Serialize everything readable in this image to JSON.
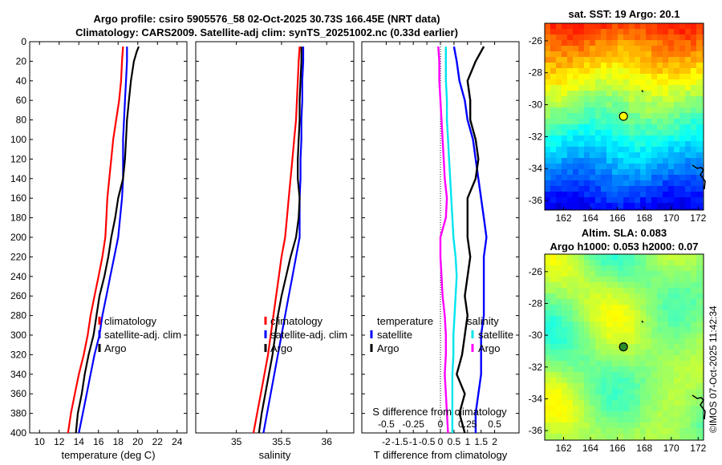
{
  "title_line1": "Argo profile: csiro 5905576_58 02-Oct-2025 30.73S 166.45E (NRT data)",
  "title_line2": "Climatology: CARS2009. Satellite-adj clim: synTS_20251002.nc (0.33d earlier)",
  "watermark": "©IMOS 07-Oct-2025 11:42:34",
  "colors": {
    "clim": "#ff0000",
    "sat": "#0000ff",
    "argo": "#000000",
    "sal_sat": "#00e5ee",
    "sal_argo": "#ff00ff"
  },
  "chart_data": [
    {
      "id": "temp",
      "type": "line",
      "xlabel": "temperature (deg C)",
      "ylabel": "",
      "xlim": [
        9,
        25
      ],
      "ylim": [
        400,
        0
      ],
      "xticks": [
        10,
        12,
        14,
        16,
        18,
        20,
        22,
        24
      ],
      "yticks": [
        0,
        20,
        40,
        60,
        80,
        100,
        120,
        140,
        160,
        180,
        200,
        220,
        240,
        260,
        280,
        300,
        320,
        340,
        360,
        380,
        400
      ],
      "legend": {
        "placement": "lower-right",
        "labels": [
          "climatology",
          "satellite-adj. clim",
          "Argo"
        ]
      },
      "series": [
        {
          "name": "climatology",
          "color": "#ff0000",
          "depth": [
            5,
            20,
            40,
            60,
            80,
            100,
            120,
            140,
            160,
            180,
            200,
            220,
            240,
            260,
            280,
            300,
            320,
            340,
            360,
            380,
            400
          ],
          "values": [
            18.5,
            18.4,
            18.3,
            18.1,
            17.8,
            17.5,
            17.3,
            17.1,
            16.9,
            16.8,
            16.7,
            16.4,
            16.0,
            15.6,
            15.2,
            14.9,
            14.5,
            14.0,
            13.6,
            13.2,
            12.9
          ]
        },
        {
          "name": "satellite-adj. clim",
          "color": "#0000ff",
          "depth": [
            5,
            20,
            40,
            60,
            80,
            100,
            120,
            140,
            160,
            180,
            200,
            220,
            240,
            260,
            280,
            300,
            320,
            340,
            360,
            380,
            400
          ],
          "values": [
            18.9,
            18.9,
            18.8,
            18.7,
            18.6,
            18.5,
            18.5,
            18.5,
            18.4,
            18.2,
            18.0,
            17.6,
            17.2,
            16.8,
            16.4,
            16.1,
            15.6,
            15.2,
            14.8,
            14.4,
            14.0
          ]
        },
        {
          "name": "Argo",
          "color": "#000000",
          "depth": [
            5,
            10,
            20,
            40,
            60,
            80,
            100,
            120,
            140,
            160,
            180,
            200,
            220,
            240,
            260,
            280,
            300,
            320,
            340,
            360,
            380,
            400
          ],
          "values": [
            20.1,
            19.9,
            19.6,
            19.3,
            19.1,
            18.9,
            18.8,
            18.7,
            18.5,
            18.0,
            17.7,
            17.3,
            17.0,
            16.6,
            16.1,
            15.8,
            15.5,
            15.0,
            14.6,
            14.3,
            13.9,
            13.7
          ]
        }
      ]
    },
    {
      "id": "sal",
      "type": "line",
      "xlabel": "salinity",
      "ylabel": "",
      "xlim": [
        34.55,
        36.3
      ],
      "ylim": [
        400,
        0
      ],
      "xticks": [
        35,
        35.5,
        36
      ],
      "legend": {
        "placement": "lower-right",
        "labels": [
          "climatology",
          "satellite-adj. clim",
          "Argo"
        ]
      },
      "series": [
        {
          "name": "climatology",
          "color": "#ff0000",
          "depth": [
            5,
            20,
            40,
            60,
            80,
            100,
            120,
            140,
            160,
            180,
            200,
            220,
            240,
            260,
            280,
            300,
            320,
            340,
            360,
            380,
            400
          ],
          "values": [
            35.7,
            35.69,
            35.68,
            35.67,
            35.66,
            35.64,
            35.62,
            35.6,
            35.58,
            35.56,
            35.54,
            35.5,
            35.47,
            35.44,
            35.41,
            35.38,
            35.35,
            35.31,
            35.27,
            35.23,
            35.19
          ]
        },
        {
          "name": "satellite-adj. clim",
          "color": "#0000ff",
          "depth": [
            5,
            20,
            40,
            60,
            80,
            100,
            120,
            140,
            160,
            180,
            200,
            220,
            240,
            260,
            280,
            300,
            320,
            340,
            360,
            380,
            400
          ],
          "values": [
            35.74,
            35.74,
            35.73,
            35.73,
            35.72,
            35.72,
            35.71,
            35.71,
            35.7,
            35.7,
            35.7,
            35.66,
            35.62,
            35.58,
            35.54,
            35.5,
            35.46,
            35.42,
            35.38,
            35.34,
            35.3
          ]
        },
        {
          "name": "Argo",
          "color": "#000000",
          "depth": [
            5,
            20,
            40,
            60,
            80,
            100,
            120,
            140,
            160,
            180,
            200,
            220,
            240,
            260,
            280,
            300,
            320,
            340,
            360,
            380,
            400
          ],
          "values": [
            35.72,
            35.72,
            35.71,
            35.7,
            35.7,
            35.69,
            35.68,
            35.68,
            35.7,
            35.69,
            35.66,
            35.6,
            35.55,
            35.5,
            35.46,
            35.43,
            35.4,
            35.36,
            35.32,
            35.28,
            35.25
          ]
        }
      ]
    },
    {
      "id": "diff",
      "type": "line",
      "xlabel": "T difference from climatology",
      "xlim": [
        -2.9,
        2.9
      ],
      "ylim": [
        400,
        0
      ],
      "xticks": [
        -2,
        -1.5,
        -1,
        -0.5,
        0,
        0.5,
        1,
        1.5,
        2
      ],
      "top_axis_label": "S difference from climatology",
      "top_ticks": [
        "-0.5",
        "-0.25",
        "0",
        "0.25",
        "0.5"
      ],
      "top_tick_values": [
        -0.5,
        -0.25,
        0,
        0.25,
        0.5
      ],
      "legend_left": {
        "heading": "temperature",
        "labels": [
          "satellite",
          "Argo"
        ]
      },
      "legend_right": {
        "heading": "salinity",
        "labels": [
          "satellite",
          "Argo"
        ]
      },
      "series": [
        {
          "name": "T satellite",
          "color": "#0000ff",
          "depth": [
            5,
            20,
            40,
            60,
            80,
            100,
            120,
            140,
            160,
            180,
            200,
            220,
            240,
            260,
            280,
            300,
            320,
            340,
            360,
            380,
            400
          ],
          "values": [
            0.5,
            0.6,
            0.7,
            0.9,
            1.0,
            1.2,
            1.3,
            1.4,
            1.5,
            1.6,
            1.7,
            1.6,
            1.6,
            1.6,
            1.6,
            1.5,
            1.5,
            1.5,
            1.4,
            1.3,
            1.3
          ]
        },
        {
          "name": "T Argo",
          "color": "#000000",
          "depth": [
            5,
            10,
            20,
            40,
            60,
            80,
            100,
            120,
            140,
            160,
            180,
            200,
            220,
            240,
            260,
            280,
            300,
            320,
            340,
            360,
            380,
            400
          ],
          "values": [
            1.6,
            1.5,
            1.3,
            1.0,
            1.1,
            1.1,
            1.3,
            1.4,
            1.3,
            1.0,
            1.0,
            1.0,
            1.1,
            1.0,
            0.9,
            1.0,
            0.9,
            0.8,
            0.6,
            0.9,
            0.7,
            0.9
          ]
        },
        {
          "name": "S satellite",
          "color": "#00e5ee",
          "depth": [
            5,
            20,
            40,
            60,
            80,
            100,
            120,
            140,
            160,
            180,
            200,
            220,
            240,
            260,
            280,
            300,
            320,
            340,
            360,
            380,
            400
          ],
          "values": [
            0.05,
            0.05,
            0.05,
            0.06,
            0.06,
            0.07,
            0.08,
            0.09,
            0.1,
            0.11,
            0.12,
            0.14,
            0.15,
            0.14,
            0.13,
            0.12,
            0.12,
            0.11,
            0.11,
            0.11,
            0.11
          ]
        },
        {
          "name": "S Argo",
          "color": "#ff00ff",
          "depth": [
            5,
            20,
            40,
            60,
            80,
            100,
            120,
            140,
            160,
            180,
            200,
            220,
            240,
            260,
            280,
            300,
            320,
            340,
            360,
            380,
            400
          ],
          "values": [
            -0.02,
            -0.01,
            -0.01,
            0.0,
            0.01,
            0.02,
            0.03,
            0.04,
            0.06,
            0.05,
            0.0,
            0.0,
            0.01,
            0.02,
            0.04,
            0.05,
            0.05,
            0.04,
            0.05,
            0.06,
            0.07
          ]
        }
      ]
    },
    {
      "id": "sst",
      "type": "heatmap",
      "title": "sat. SST: 19 Argo: 20.1",
      "xlim": [
        160.6,
        172.4
      ],
      "ylim": [
        -36.6,
        -24.9
      ],
      "xticks": [
        162,
        164,
        166,
        168,
        170,
        172
      ],
      "yticks": [
        -26,
        -28,
        -30,
        -32,
        -34,
        -36
      ],
      "marker": {
        "lon": 166.45,
        "lat": -30.73
      }
    },
    {
      "id": "sla",
      "type": "heatmap",
      "title_line1": "Altim. SLA: 0.083",
      "title_line2": "Argo h1000: 0.053 h2000: 0.07",
      "xlim": [
        160.6,
        172.4
      ],
      "ylim": [
        -36.6,
        -24.9
      ],
      "xticks": [
        162,
        164,
        166,
        168,
        170,
        172
      ],
      "yticks": [
        -26,
        -28,
        -30,
        -32,
        -34,
        -36
      ],
      "marker": {
        "lon": 166.45,
        "lat": -30.73
      }
    }
  ]
}
